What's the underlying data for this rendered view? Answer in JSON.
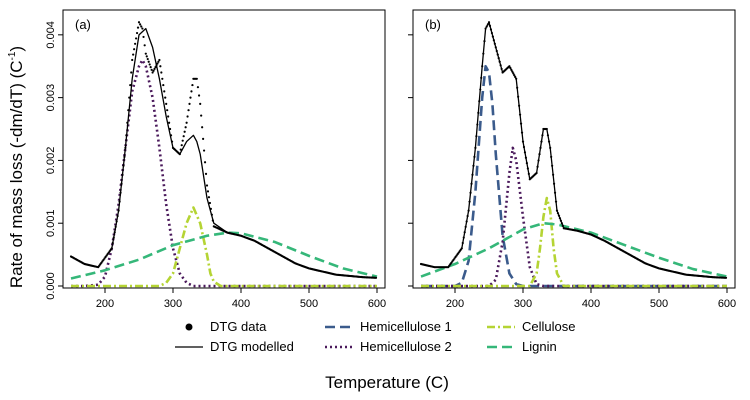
{
  "chart_data": {
    "type": "line",
    "ylabel": "Rate of mass loss (-dm/dT) (C",
    "ylabel_sup": "-1",
    "ylabel_end": ")",
    "xlabel": "Temperature (C)",
    "xlim": [
      150,
      600
    ],
    "ylim": [
      0,
      0.0043
    ],
    "x_ticks": [
      200,
      300,
      400,
      500,
      600
    ],
    "y_ticks": [
      0.0,
      0.001,
      0.002,
      0.003,
      0.004
    ],
    "y_tick_labels": [
      "0.000",
      "0.001",
      "0.002",
      "0.003",
      "0.004"
    ],
    "grid": false,
    "legend_placement": "bottom",
    "legend": [
      {
        "label": "DTG data",
        "style": "points",
        "color": "#000000"
      },
      {
        "label": "DTG modelled",
        "style": "solid",
        "color": "#000000"
      },
      {
        "label": "Hemicellulose 1",
        "style": "longdash",
        "color": "#3b5b8c"
      },
      {
        "label": "Hemicellulose 2",
        "style": "dotted",
        "color": "#4b1a5c"
      },
      {
        "label": "Cellulose",
        "style": "dotdash",
        "color": "#b5d434"
      },
      {
        "label": "Lignin",
        "style": "longdash",
        "color": "#35b779"
      }
    ],
    "panels": [
      {
        "label": "(a)",
        "series": [
          {
            "name": "DTG data",
            "x": [
              150,
              170,
              190,
              210,
              220,
              230,
              240,
              250,
              255,
              260,
              270,
              280,
              290,
              300,
              310,
              320,
              330,
              335,
              340,
              350,
              360,
              380,
              400,
              420,
              440,
              460,
              480,
              500,
              520,
              540,
              560,
              580,
              600
            ],
            "y": [
              0.00047,
              0.00035,
              0.0003,
              0.0006,
              0.0012,
              0.0022,
              0.0036,
              0.0042,
              0.0041,
              0.0037,
              0.0034,
              0.0036,
              0.0029,
              0.0022,
              0.0021,
              0.0026,
              0.0033,
              0.0033,
              0.0029,
              0.0016,
              0.00095,
              0.00085,
              0.0008,
              0.00072,
              0.0006,
              0.00048,
              0.00036,
              0.00028,
              0.00023,
              0.00018,
              0.00016,
              0.00014,
              0.00013
            ]
          },
          {
            "name": "DTG modelled",
            "x": [
              150,
              170,
              190,
              210,
              220,
              230,
              240,
              250,
              260,
              270,
              280,
              290,
              300,
              310,
              320,
              330,
              335,
              340,
              350,
              360,
              380,
              400,
              420,
              440,
              460,
              480,
              500,
              520,
              540,
              560,
              580,
              600
            ],
            "y": [
              0.00047,
              0.00035,
              0.0003,
              0.0006,
              0.0012,
              0.0022,
              0.0033,
              0.004,
              0.0041,
              0.0038,
              0.0033,
              0.0027,
              0.0022,
              0.0021,
              0.0023,
              0.0024,
              0.0023,
              0.0021,
              0.0014,
              0.001,
              0.00085,
              0.0008,
              0.00072,
              0.0006,
              0.00048,
              0.00036,
              0.00028,
              0.00023,
              0.00018,
              0.00016,
              0.00014,
              0.00013
            ]
          },
          {
            "name": "Hemicellulose 2",
            "x": [
              150,
              170,
              190,
              200,
              210,
              220,
              230,
              240,
              250,
              255,
              260,
              270,
              280,
              290,
              300,
              310,
              320,
              330,
              340,
              360,
              600
            ],
            "y": [
              0,
              0,
              2e-05,
              0.00015,
              0.0006,
              0.0013,
              0.0022,
              0.0031,
              0.0035,
              0.0036,
              0.0035,
              0.003,
              0.0022,
              0.0013,
              0.0006,
              0.0002,
              5e-05,
              0,
              0,
              0,
              0
            ]
          },
          {
            "name": "Cellulose",
            "x": [
              150,
              280,
              290,
              300,
              310,
              320,
              330,
              340,
              350,
              355,
              360,
              370,
              600
            ],
            "y": [
              0,
              0,
              5e-05,
              0.0002,
              0.0006,
              0.001,
              0.00125,
              0.001,
              0.0005,
              0.0002,
              7e-05,
              0,
              0
            ]
          },
          {
            "name": "Lignin",
            "x": [
              150,
              200,
              250,
              300,
              350,
              380,
              400,
              450,
              500,
              550,
              600
            ],
            "y": [
              0.00012,
              0.00025,
              0.00042,
              0.00065,
              0.0008,
              0.00085,
              0.00084,
              0.0007,
              0.00048,
              0.00028,
              0.00015
            ]
          }
        ]
      },
      {
        "label": "(b)",
        "series": [
          {
            "name": "DTG data",
            "x": [
              150,
              170,
              190,
              210,
              220,
              230,
              240,
              245,
              250,
              260,
              270,
              280,
              290,
              300,
              310,
              320,
              330,
              335,
              340,
              350,
              360,
              380,
              400,
              420,
              440,
              460,
              480,
              500,
              520,
              540,
              560,
              580,
              600
            ],
            "y": [
              0.00035,
              0.0003,
              0.0003,
              0.0006,
              0.0012,
              0.0022,
              0.0035,
              0.0041,
              0.0042,
              0.0038,
              0.0034,
              0.0035,
              0.0033,
              0.0023,
              0.0017,
              0.0018,
              0.0025,
              0.0025,
              0.0022,
              0.0012,
              0.00092,
              0.00088,
              0.00082,
              0.00072,
              0.0006,
              0.00048,
              0.00036,
              0.00028,
              0.00023,
              0.00018,
              0.00016,
              0.00014,
              0.00013
            ]
          },
          {
            "name": "DTG modelled",
            "x": [
              150,
              170,
              190,
              210,
              220,
              230,
              240,
              245,
              250,
              260,
              270,
              280,
              290,
              300,
              310,
              320,
              330,
              335,
              340,
              350,
              360,
              380,
              400,
              420,
              440,
              460,
              480,
              500,
              520,
              540,
              560,
              580,
              600
            ],
            "y": [
              0.00035,
              0.0003,
              0.0003,
              0.0006,
              0.0012,
              0.0022,
              0.0035,
              0.0041,
              0.0042,
              0.0038,
              0.0034,
              0.0035,
              0.0033,
              0.0023,
              0.0017,
              0.0018,
              0.0025,
              0.0025,
              0.0022,
              0.0012,
              0.00092,
              0.00088,
              0.00082,
              0.00072,
              0.0006,
              0.00048,
              0.00036,
              0.00028,
              0.00023,
              0.00018,
              0.00016,
              0.00014,
              0.00013
            ]
          },
          {
            "name": "Hemicellulose 1",
            "x": [
              150,
              200,
              210,
              220,
              230,
              240,
              245,
              250,
              255,
              260,
              270,
              280,
              290,
              300,
              600
            ],
            "y": [
              0,
              0,
              5e-05,
              0.0004,
              0.0015,
              0.003,
              0.0035,
              0.0034,
              0.0029,
              0.0021,
              0.0008,
              0.0002,
              3e-05,
              0,
              0
            ]
          },
          {
            "name": "Hemicellulose 2",
            "x": [
              150,
              250,
              260,
              270,
              280,
              285,
              290,
              300,
              310,
              320,
              330,
              600
            ],
            "y": [
              0,
              0,
              0.0001,
              0.0007,
              0.0018,
              0.0022,
              0.002,
              0.0011,
              0.0003,
              3e-05,
              0,
              0
            ]
          },
          {
            "name": "Cellulose",
            "x": [
              150,
              310,
              320,
              325,
              330,
              335,
              340,
              345,
              350,
              360,
              600
            ],
            "y": [
              0,
              0,
              0.0002,
              0.0006,
              0.0011,
              0.0014,
              0.0012,
              0.0006,
              0.0002,
              0,
              0
            ]
          },
          {
            "name": "Lignin",
            "x": [
              150,
              200,
              250,
              300,
              330,
              350,
              400,
              450,
              500,
              550,
              600
            ],
            "y": [
              0.00015,
              0.00035,
              0.0006,
              0.0009,
              0.001,
              0.00098,
              0.00085,
              0.00065,
              0.00045,
              0.00027,
              0.00015
            ]
          }
        ]
      }
    ]
  }
}
